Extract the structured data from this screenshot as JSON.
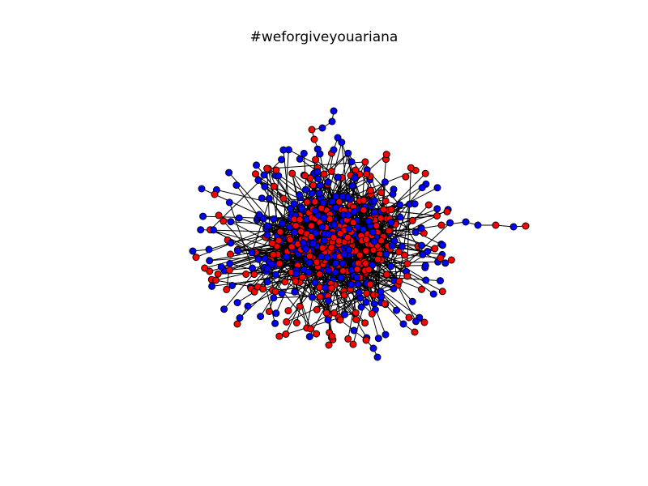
{
  "figure": {
    "title": "#weforgiveyouariana"
  },
  "network": {
    "node_colors": {
      "group_a": "#0000ff",
      "group_b": "#ff0000"
    },
    "edge_color": "#000000",
    "node_outline_color": "#000000",
    "background": "#ffffff",
    "layout": "force-directed, dense central cluster with radial spokes and pendant chains"
  }
}
